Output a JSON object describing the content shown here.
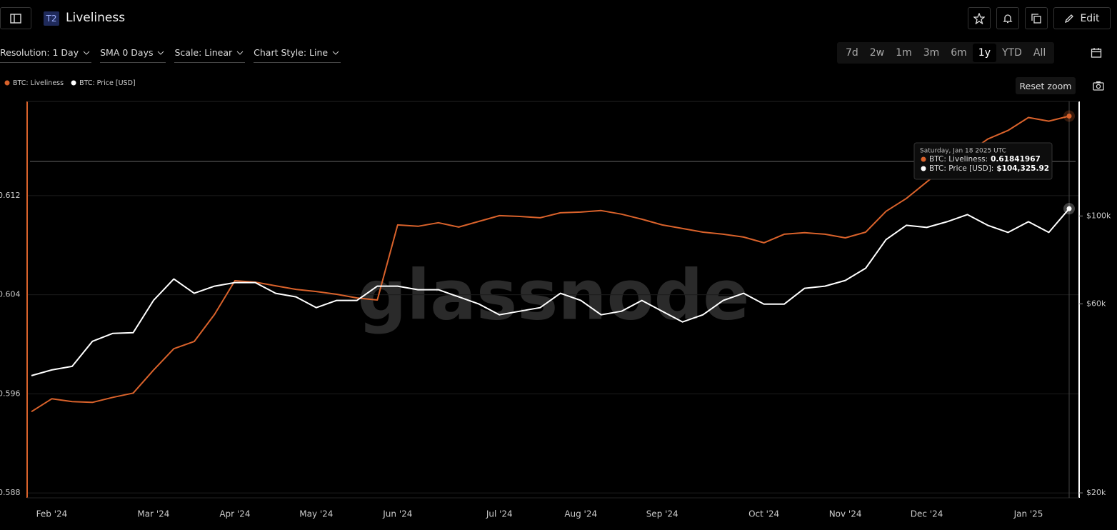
{
  "header": {
    "badge": "T2",
    "title": "Liveliness",
    "edit": "Edit"
  },
  "toolbar": {
    "options": [
      "Resolution: 1 Day",
      "SMA 0 Days",
      "Scale: Linear",
      "Chart Style: Line"
    ],
    "ranges": [
      "7d",
      "2w",
      "1m",
      "3m",
      "6m",
      "1y",
      "YTD",
      "All"
    ],
    "active_range": "1y",
    "reset_zoom": "Reset zoom"
  },
  "chart_data": {
    "type": "line",
    "watermark": "glassnode",
    "categories": [
      null,
      "Feb '24",
      null,
      null,
      null,
      null,
      "Mar '24",
      null,
      null,
      null,
      "Apr '24",
      null,
      null,
      null,
      "May '24",
      null,
      null,
      null,
      "Jun '24",
      null,
      null,
      null,
      null,
      "Jul '24",
      null,
      null,
      null,
      "Aug '24",
      null,
      null,
      null,
      "Sep '24",
      null,
      null,
      null,
      null,
      "Oct '24",
      null,
      null,
      null,
      "Nov '24",
      null,
      null,
      null,
      "Dec '24",
      null,
      null,
      null,
      null,
      "Jan '25",
      null,
      null
    ],
    "series": [
      {
        "name": "BTC: Liveliness",
        "color": "#d9622b",
        "axis": "y",
        "values": [
          0.59456,
          0.5956,
          0.59537,
          0.59531,
          0.59571,
          0.59606,
          0.59791,
          0.59964,
          0.60022,
          0.60241,
          0.60513,
          0.60501,
          0.60472,
          0.60443,
          0.60426,
          0.60403,
          0.60374,
          0.60357,
          0.60963,
          0.60952,
          0.60981,
          0.60946,
          0.60992,
          0.61038,
          0.61032,
          0.61021,
          0.61061,
          0.61067,
          0.61079,
          0.6105,
          0.61009,
          0.60963,
          0.60934,
          0.60905,
          0.60888,
          0.60865,
          0.60819,
          0.60888,
          0.609,
          0.60888,
          0.60859,
          0.60905,
          0.61073,
          0.61177,
          0.6131,
          0.61443,
          0.61541,
          0.61656,
          0.61726,
          0.6183,
          0.61801,
          0.61841967
        ]
      },
      {
        "name": "BTC: Price [USD]",
        "color": "#ffffff",
        "axis": "y2",
        "values": [
          39530,
          40870,
          41730,
          48270,
          50540,
          50750,
          61200,
          69340,
          63800,
          66510,
          67910,
          67910,
          63800,
          62490,
          58700,
          61200,
          61200,
          66510,
          66510,
          65140,
          65140,
          62490,
          59940,
          56310,
          57490,
          58700,
          63800,
          61200,
          56310,
          57490,
          61200,
          57490,
          54010,
          56310,
          61200,
          63800,
          59940,
          59940,
          65680,
          66510,
          68760,
          73800,
          87170,
          94730,
          93560,
          96730,
          100840,
          94730,
          90870,
          96730,
          90870,
          104325.92
        ]
      }
    ],
    "ylim": [
      0.5876,
      0.6196
    ],
    "yticks": [
      0.588,
      0.596,
      0.604,
      0.612
    ],
    "y2lim": [
      19430,
      194600
    ],
    "y2_log": true,
    "y2ticks": [
      {
        "value": 20000,
        "label": "$20k"
      },
      {
        "value": 60000,
        "label": "$60k"
      },
      {
        "value": 100000,
        "label": "$100k"
      }
    ],
    "grid": true,
    "tooltip": {
      "title": "Saturday, Jan 18 2025 UTC",
      "labels": [
        "BTC: Liveliness:",
        "BTC: Price [USD]:"
      ],
      "value_labels": [
        "0.61841967",
        "$104,325.92"
      ]
    }
  }
}
